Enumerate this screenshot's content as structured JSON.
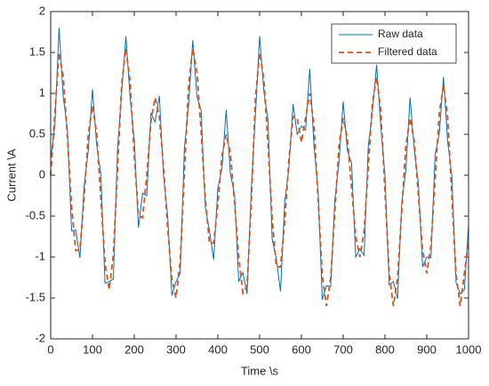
{
  "chart_data": {
    "type": "line",
    "xlabel": "Time \\s",
    "ylabel": "Current \\A",
    "xlim": [
      0,
      1000
    ],
    "xticks": [
      0,
      100,
      200,
      300,
      400,
      500,
      600,
      700,
      800,
      900,
      1000
    ],
    "ylim": [
      -2,
      2
    ],
    "yticks": [
      -2,
      -1.5,
      -1,
      -0.5,
      0,
      0.5,
      1,
      1.5,
      2
    ],
    "legend": "top-right",
    "x": [
      0,
      10,
      20,
      30,
      40,
      50,
      60,
      70,
      80,
      90,
      100,
      110,
      120,
      130,
      140,
      150,
      160,
      170,
      180,
      190,
      200,
      210,
      220,
      230,
      240,
      250,
      260,
      270,
      280,
      290,
      300,
      310,
      320,
      330,
      340,
      350,
      360,
      370,
      380,
      390,
      400,
      410,
      420,
      430,
      440,
      450,
      460,
      470,
      480,
      490,
      500,
      510,
      520,
      530,
      540,
      550,
      560,
      570,
      580,
      590,
      600,
      610,
      620,
      630,
      640,
      650,
      660,
      670,
      680,
      690,
      700,
      710,
      720,
      730,
      740,
      750,
      760,
      770,
      780,
      790,
      800,
      810,
      820,
      830,
      840,
      850,
      860,
      870,
      880,
      890,
      900,
      910,
      920,
      930,
      940,
      950,
      960,
      970,
      980,
      990,
      1000
    ],
    "series": [
      {
        "name": "Raw data",
        "color": "#0072BD",
        "dash": false,
        "values": [
          0.2,
          0.6,
          1.8,
          0.96,
          0.57,
          -0.68,
          -0.67,
          -1.01,
          -0.13,
          0.3,
          1.05,
          0.37,
          0.02,
          -1.32,
          -1.3,
          -1.27,
          0.33,
          1.02,
          1.7,
          0.95,
          0.44,
          -0.64,
          -0.22,
          -0.25,
          0.76,
          0.65,
          0.97,
          0,
          -0.5,
          -1.47,
          -1.3,
          -1.2,
          0.33,
          0.85,
          1.65,
          0.96,
          0.79,
          -0.39,
          -0.68,
          -1.03,
          -0.16,
          0.09,
          0.8,
          0.02,
          -0.23,
          -1.3,
          -1.19,
          -1.45,
          -0.18,
          0.74,
          1.7,
          1.03,
          0.68,
          -0.78,
          -1.02,
          -1.42,
          -0.33,
          0.08,
          0.87,
          0.5,
          0.6,
          0.55,
          1.3,
          0.37,
          -0.2,
          -1.52,
          -1.35,
          -1.36,
          -0.3,
          0.16,
          0.9,
          0.3,
          0.15,
          -1,
          -0.9,
          -0.98,
          0.35,
          0.78,
          1.35,
          0.59,
          0,
          -1.34,
          -1.3,
          -1.51,
          -0.35,
          0.06,
          0.95,
          0.32,
          -0.1,
          -1.12,
          -1,
          -1.01,
          0.25,
          0.51,
          1.2,
          0.41,
          0,
          -1.31,
          -1.45,
          -1.4,
          -0.6
        ]
      },
      {
        "name": "Filtered data",
        "color": "#D95319",
        "dash": true,
        "values": [
          0,
          0.75,
          1.5,
          1.21,
          0.47,
          -0.38,
          -0.92,
          -0.91,
          -0.28,
          0.5,
          0.85,
          0.52,
          -0.28,
          -1.07,
          -1.4,
          -0.97,
          0.08,
          1.12,
          1.55,
          1.15,
          0.24,
          -0.49,
          -0.52,
          0,
          0.66,
          0.95,
          0.72,
          0.1,
          -0.65,
          -1.27,
          -1.5,
          -1.05,
          0.03,
          1.1,
          1.55,
          1.26,
          0.54,
          -0.29,
          -0.83,
          -0.83,
          -0.36,
          0.24,
          0.5,
          0.27,
          -0.33,
          -1,
          -1.44,
          -1.35,
          -0.33,
          0.94,
          1.5,
          1.18,
          0.38,
          -0.53,
          -1.12,
          -1.12,
          -0.58,
          0.18,
          0.72,
          0.7,
          0.4,
          0.7,
          1,
          0.62,
          -0.3,
          -1.22,
          -1.6,
          -1.26,
          -0.45,
          0.36,
          0.7,
          0.45,
          -0.15,
          -0.75,
          -1,
          -0.68,
          0.1,
          0.88,
          1.2,
          0.79,
          -0.2,
          -1.19,
          -1.6,
          -1.26,
          -0.45,
          0.36,
          0.7,
          0.42,
          -0.25,
          -0.92,
          -1.2,
          -0.86,
          -0.05,
          0.76,
          1.1,
          0.71,
          -0.25,
          -1.21,
          -1.6,
          -1.2,
          -0.8
        ]
      }
    ]
  }
}
